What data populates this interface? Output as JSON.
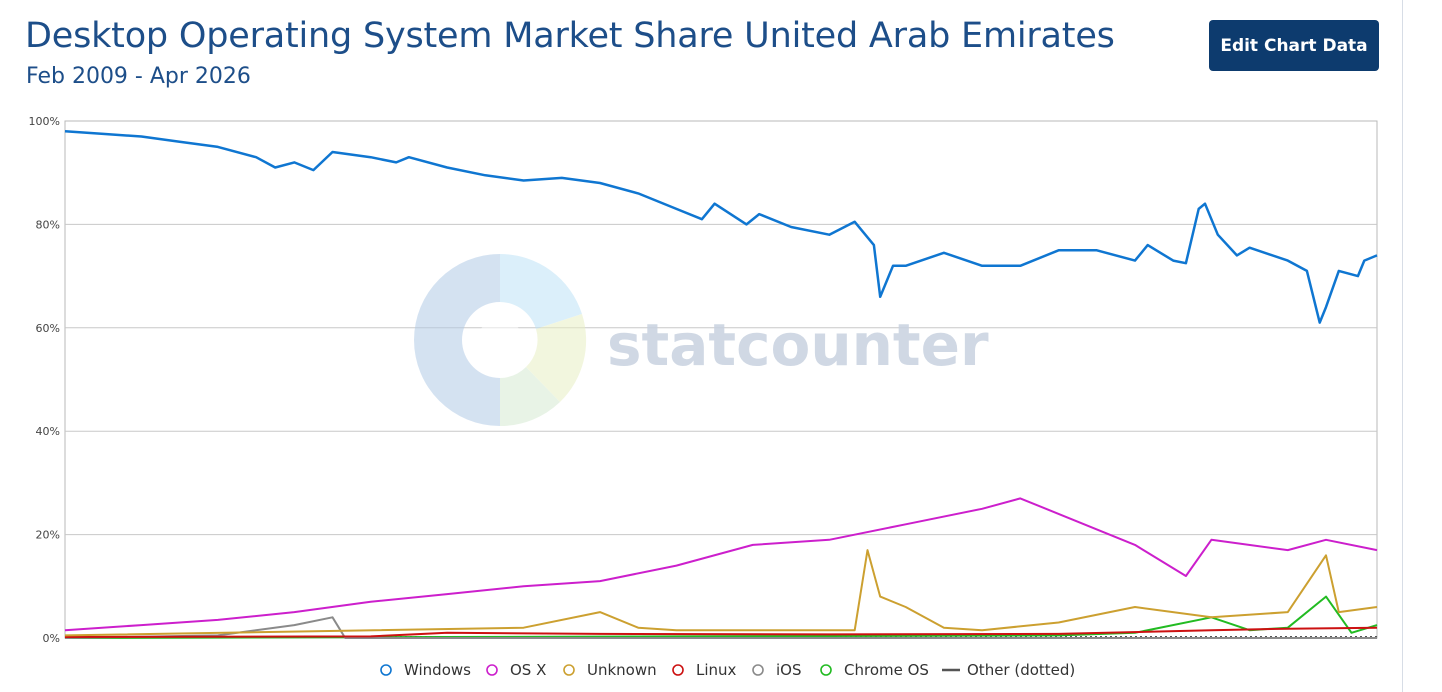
{
  "header": {
    "title": "Desktop Operating System Market Share United Arab Emirates",
    "subtitle": "Feb 2009 - Apr 2026",
    "edit_button": "Edit Chart Data"
  },
  "watermark": "statcounter",
  "colors": {
    "Windows": "#0f76d1",
    "OS X": "#cc1fcc",
    "Unknown": "#cca030",
    "Linux": "#cc1111",
    "iOS": "#8a8a8a",
    "Chrome OS": "#22bb22",
    "Other (dotted)": "#555555"
  },
  "chart_data": {
    "type": "line",
    "title": "Desktop Operating System Market Share United Arab Emirates",
    "subtitle": "Feb 2009 - Apr 2026",
    "x_range": [
      "2009-02",
      "2026-04"
    ],
    "ylim": [
      0,
      100
    ],
    "y_ticks": [
      "0%",
      "20%",
      "40%",
      "60%",
      "80%",
      "100%"
    ],
    "grid": true,
    "legend_position": "bottom",
    "series": [
      {
        "name": "Windows",
        "points": [
          [
            "2009-02",
            98
          ],
          [
            "2009-08",
            97.5
          ],
          [
            "2010-02",
            97
          ],
          [
            "2010-08",
            96
          ],
          [
            "2011-02",
            95
          ],
          [
            "2011-08",
            93
          ],
          [
            "2011-11",
            91
          ],
          [
            "2012-02",
            92
          ],
          [
            "2012-05",
            90.5
          ],
          [
            "2012-08",
            94
          ],
          [
            "2013-02",
            93
          ],
          [
            "2013-06",
            92
          ],
          [
            "2013-08",
            93
          ],
          [
            "2014-02",
            91
          ],
          [
            "2014-08",
            89.5
          ],
          [
            "2015-02",
            88.5
          ],
          [
            "2015-08",
            89
          ],
          [
            "2016-02",
            88
          ],
          [
            "2016-08",
            86
          ],
          [
            "2017-02",
            83
          ],
          [
            "2017-06",
            81
          ],
          [
            "2017-08",
            84
          ],
          [
            "2018-01",
            80
          ],
          [
            "2018-03",
            82
          ],
          [
            "2018-08",
            79.5
          ],
          [
            "2019-02",
            78
          ],
          [
            "2019-06",
            80.5
          ],
          [
            "2019-09",
            76
          ],
          [
            "2019-10",
            66
          ],
          [
            "2019-12",
            72
          ],
          [
            "2020-02",
            72
          ],
          [
            "2020-08",
            74.5
          ],
          [
            "2021-02",
            72
          ],
          [
            "2021-08",
            72
          ],
          [
            "2022-02",
            75
          ],
          [
            "2022-08",
            75
          ],
          [
            "2023-02",
            73
          ],
          [
            "2023-04",
            76
          ],
          [
            "2023-08",
            73
          ],
          [
            "2023-10",
            72.5
          ],
          [
            "2023-12",
            83
          ],
          [
            "2024-01",
            84
          ],
          [
            "2024-03",
            78
          ],
          [
            "2024-06",
            74
          ],
          [
            "2024-08",
            75.5
          ],
          [
            "2025-02",
            73
          ],
          [
            "2025-05",
            71
          ],
          [
            "2025-07",
            61
          ],
          [
            "2025-08",
            64
          ],
          [
            "2025-10",
            71
          ],
          [
            "2026-01",
            70
          ],
          [
            "2026-02",
            73
          ],
          [
            "2026-04",
            74
          ]
        ]
      },
      {
        "name": "OS X",
        "points": [
          [
            "2009-02",
            1.5
          ],
          [
            "2010-02",
            2.5
          ],
          [
            "2011-02",
            3.5
          ],
          [
            "2012-02",
            5
          ],
          [
            "2013-02",
            7
          ],
          [
            "2014-02",
            8.5
          ],
          [
            "2015-02",
            10
          ],
          [
            "2016-02",
            11
          ],
          [
            "2017-02",
            14
          ],
          [
            "2018-02",
            18
          ],
          [
            "2019-02",
            19
          ],
          [
            "2020-02",
            22
          ],
          [
            "2021-02",
            25
          ],
          [
            "2021-08",
            27
          ],
          [
            "2022-02",
            24
          ],
          [
            "2023-02",
            18
          ],
          [
            "2023-10",
            12
          ],
          [
            "2024-02",
            19
          ],
          [
            "2025-02",
            17
          ],
          [
            "2025-08",
            19
          ],
          [
            "2026-04",
            17
          ]
        ]
      },
      {
        "name": "Unknown",
        "points": [
          [
            "2009-02",
            0.5
          ],
          [
            "2015-02",
            2
          ],
          [
            "2016-02",
            5
          ],
          [
            "2016-08",
            2
          ],
          [
            "2017-02",
            1.5
          ],
          [
            "2019-06",
            1.5
          ],
          [
            "2019-08",
            17
          ],
          [
            "2019-10",
            8
          ],
          [
            "2020-02",
            6
          ],
          [
            "2020-08",
            2
          ],
          [
            "2021-02",
            1.5
          ],
          [
            "2022-02",
            3
          ],
          [
            "2023-02",
            6
          ],
          [
            "2024-02",
            4
          ],
          [
            "2025-02",
            5
          ],
          [
            "2025-08",
            16
          ],
          [
            "2025-10",
            5
          ],
          [
            "2026-04",
            6
          ]
        ]
      },
      {
        "name": "Linux",
        "points": [
          [
            "2009-02",
            0.2
          ],
          [
            "2013-02",
            0.3
          ],
          [
            "2014-02",
            1
          ],
          [
            "2016-02",
            0.8
          ],
          [
            "2019-02",
            0.7
          ],
          [
            "2022-02",
            0.8
          ],
          [
            "2024-02",
            1.5
          ],
          [
            "2025-02",
            1.8
          ],
          [
            "2026-04",
            2
          ]
        ]
      },
      {
        "name": "iOS",
        "points": [
          [
            "2009-02",
            0
          ],
          [
            "2011-02",
            0.5
          ],
          [
            "2012-02",
            2.5
          ],
          [
            "2012-08",
            4
          ],
          [
            "2012-10",
            0
          ],
          [
            "2026-04",
            0
          ]
        ]
      },
      {
        "name": "Chrome OS",
        "points": [
          [
            "2009-02",
            0
          ],
          [
            "2022-02",
            0.5
          ],
          [
            "2023-02",
            1
          ],
          [
            "2024-02",
            4
          ],
          [
            "2024-08",
            1.5
          ],
          [
            "2025-02",
            2
          ],
          [
            "2025-08",
            8
          ],
          [
            "2025-12",
            1
          ],
          [
            "2026-04",
            2.5
          ]
        ]
      },
      {
        "name": "Other (dotted)",
        "points": [
          [
            "2009-02",
            0.2
          ],
          [
            "2026-04",
            0.2
          ]
        ]
      }
    ]
  }
}
